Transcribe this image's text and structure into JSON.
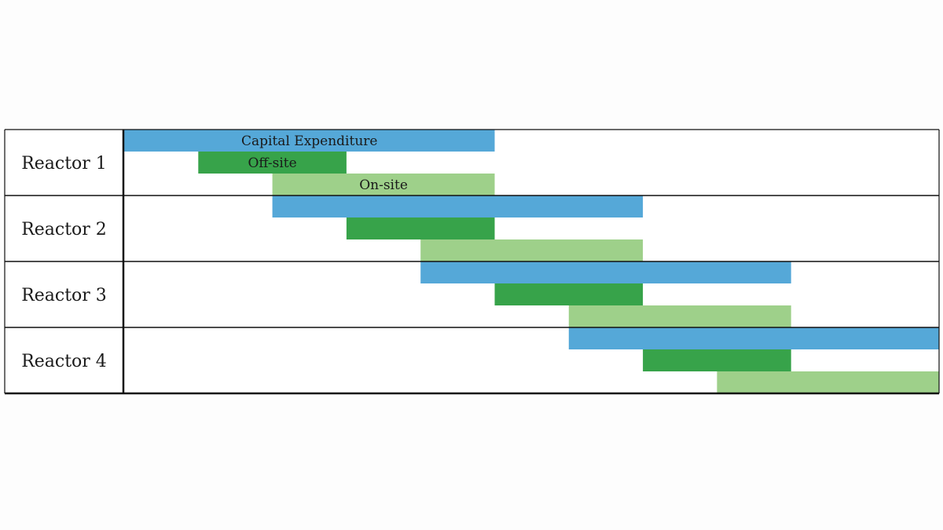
{
  "chart_data": {
    "type": "gantt",
    "title": "",
    "xlabel": "",
    "ylabel": "",
    "x_range": [
      0,
      11
    ],
    "grid": false,
    "legend": "none",
    "colors": {
      "Capital Expenditure": "#55a8d8",
      "Off-site": "#37a34a",
      "On-site": "#9ed08a"
    },
    "phase_labels": [
      "Capital Expenditure",
      "Off-site",
      "On-site"
    ],
    "rows": [
      {
        "label": "Reactor 1",
        "tasks": [
          {
            "phase": "Capital Expenditure",
            "start": 0,
            "end": 5,
            "label": "Capital Expenditure"
          },
          {
            "phase": "Off-site",
            "start": 1,
            "end": 3,
            "label": "Off-site"
          },
          {
            "phase": "On-site",
            "start": 2,
            "end": 5,
            "label": "On-site"
          }
        ]
      },
      {
        "label": "Reactor 2",
        "tasks": [
          {
            "phase": "Capital Expenditure",
            "start": 2,
            "end": 7
          },
          {
            "phase": "Off-site",
            "start": 3,
            "end": 5
          },
          {
            "phase": "On-site",
            "start": 4,
            "end": 7
          }
        ]
      },
      {
        "label": "Reactor 3",
        "tasks": [
          {
            "phase": "Capital Expenditure",
            "start": 4,
            "end": 9
          },
          {
            "phase": "Off-site",
            "start": 5,
            "end": 7
          },
          {
            "phase": "On-site",
            "start": 6,
            "end": 9
          }
        ]
      },
      {
        "label": "Reactor 4",
        "tasks": [
          {
            "phase": "Capital Expenditure",
            "start": 6,
            "end": 11
          },
          {
            "phase": "Off-site",
            "start": 7,
            "end": 9
          },
          {
            "phase": "On-site",
            "start": 8,
            "end": 11
          }
        ]
      }
    ]
  }
}
